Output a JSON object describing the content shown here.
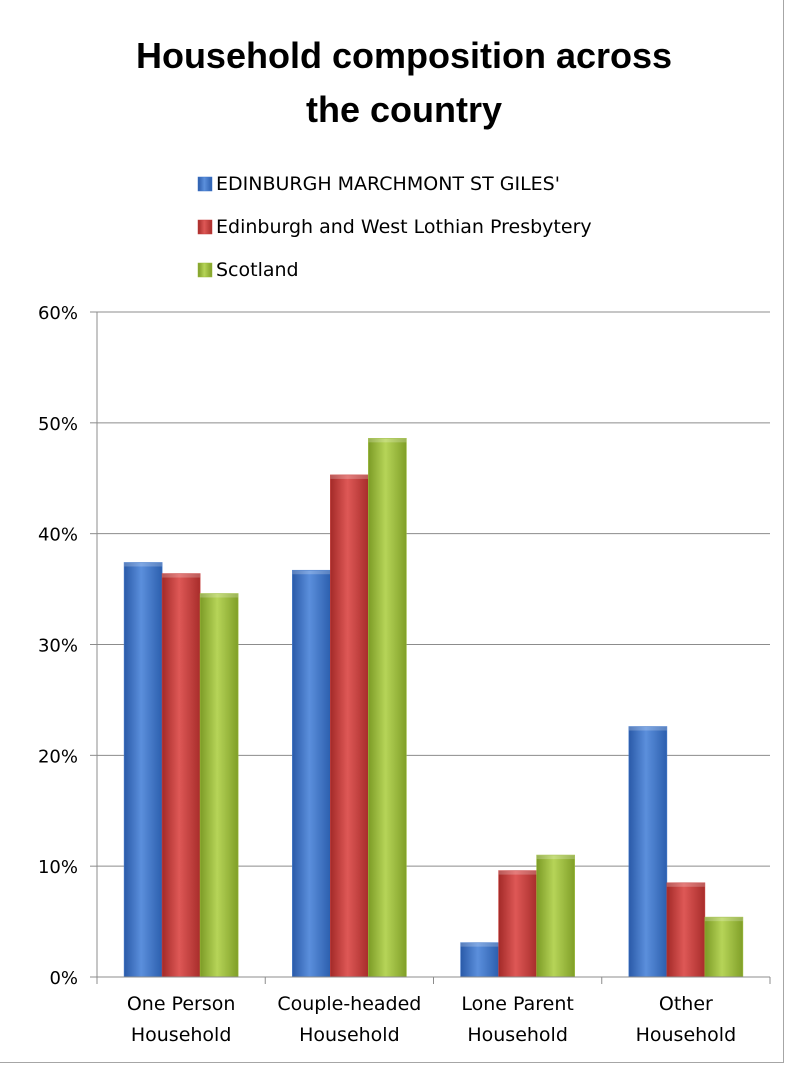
{
  "chart_data": {
    "type": "bar",
    "title_lines": [
      "Household composition across",
      "the country"
    ],
    "categories": [
      [
        "One Person",
        "Household"
      ],
      [
        "Couple-headed",
        "Household"
      ],
      [
        "Lone Parent",
        "Household"
      ],
      [
        "Other",
        "Household"
      ]
    ],
    "series": [
      {
        "name": "EDINBURGH MARCHMONT ST GILES'",
        "color": "#3f76c9",
        "values": [
          37.4,
          36.7,
          3.1,
          22.6
        ]
      },
      {
        "name": "Edinburgh and West Lothian Presbytery",
        "color": "#c63c3a",
        "values": [
          36.4,
          45.3,
          9.6,
          8.5
        ]
      },
      {
        "name": "Scotland",
        "color": "#9bbb3a",
        "values": [
          34.6,
          48.6,
          11.0,
          5.4
        ]
      }
    ],
    "ylim": [
      0,
      60
    ],
    "yticks": [
      "0%",
      "10%",
      "20%",
      "30%",
      "40%",
      "50%",
      "60%"
    ],
    "grid": true,
    "legend_position": "top"
  }
}
